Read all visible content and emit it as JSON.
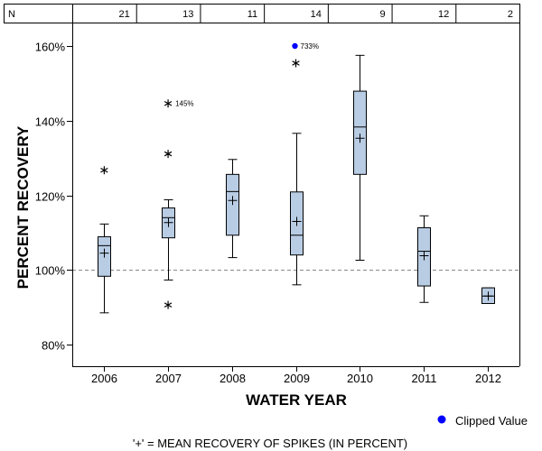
{
  "chart_data": {
    "type": "boxplot",
    "xlabel": "WATER YEAR",
    "ylabel": "PERCENT RECOVERY",
    "ylim": [
      75,
      165
    ],
    "yticks": [
      80,
      100,
      120,
      140,
      160
    ],
    "ytick_labels": [
      "80%",
      "100%",
      "120%",
      "140%",
      "160%"
    ],
    "reference_line": 100,
    "n_header_label": "N",
    "categories": [
      "2006",
      "2007",
      "2008",
      "2009",
      "2010",
      "2011",
      "2012"
    ],
    "n_counts": [
      "21",
      "13",
      "11",
      "14",
      "9",
      "12",
      "2"
    ],
    "boxes": [
      {
        "year": "2006",
        "whisker_low": 88.5,
        "q1": 98.3,
        "median": 106.5,
        "q3": 108.9,
        "whisker_high": 112.3,
        "mean": 104.5
      },
      {
        "year": "2007",
        "whisker_low": 97.3,
        "q1": 108.6,
        "median": 114.0,
        "q3": 116.6,
        "whisker_high": 118.8,
        "mean": 112.7
      },
      {
        "year": "2008",
        "whisker_low": 103.3,
        "q1": 109.3,
        "median": 121.0,
        "q3": 125.6,
        "whisker_high": 129.6,
        "mean": 118.6
      },
      {
        "year": "2009",
        "whisker_low": 96.0,
        "q1": 104.0,
        "median": 109.3,
        "q3": 120.9,
        "whisker_high": 136.6,
        "mean": 113.0
      },
      {
        "year": "2010",
        "whisker_low": 102.6,
        "q1": 125.6,
        "median": 138.3,
        "q3": 147.9,
        "whisker_high": 157.5,
        "mean": 135.3
      },
      {
        "year": "2011",
        "whisker_low": 91.3,
        "q1": 95.7,
        "median": 105.0,
        "q3": 111.3,
        "whisker_high": 114.5,
        "mean": 103.8
      },
      {
        "year": "2012",
        "whisker_low": 91.0,
        "q1": 91.0,
        "median": 93.0,
        "q3": 95.2,
        "whisker_high": 95.2,
        "mean": 93.0
      }
    ],
    "outliers": [
      {
        "year": "2006",
        "value": 126.7
      },
      {
        "year": "2007",
        "value": 131.1
      },
      {
        "year": "2007",
        "value": 144.6
      },
      {
        "year": "2007",
        "value": 90.6
      },
      {
        "year": "2009",
        "value": 155.4
      }
    ],
    "outlier_labels": [
      {
        "year": "2007",
        "value": 144.6,
        "text": "145%"
      }
    ],
    "clipped_values": [
      {
        "year": "2009",
        "plotted_at": 160.0,
        "text": "733%"
      }
    ],
    "legend_label": "Clipped Value",
    "footnote": "'+' = MEAN RECOVERY OF SPIKES (IN PERCENT)",
    "colors": {
      "box_fill": "#b8cce4",
      "box_stroke": "#000000",
      "reference_line": "#888888",
      "clipped_marker": "#0000ff",
      "axis": "#000000"
    }
  }
}
